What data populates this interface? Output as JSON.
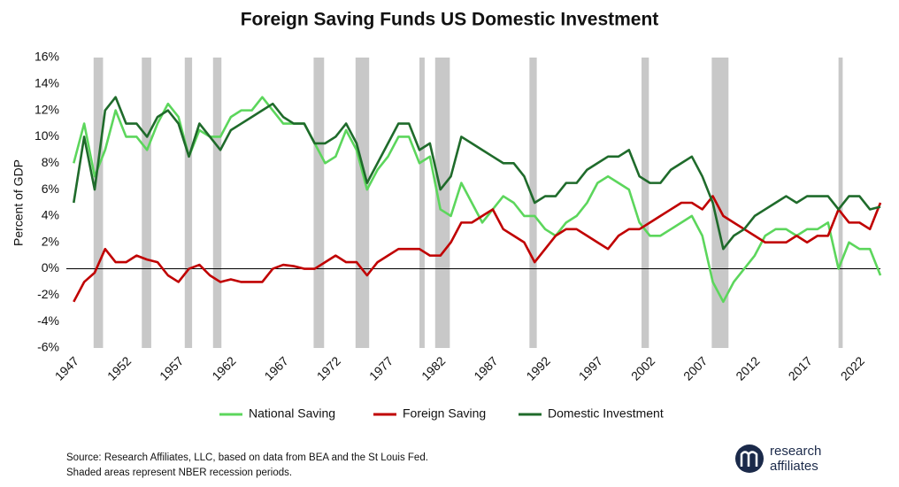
{
  "chart_data": {
    "type": "line",
    "title": "Foreign Saving Funds US Domestic Investment",
    "y_label": "Percent of GDP",
    "x": [
      1947,
      1948,
      1949,
      1950,
      1951,
      1952,
      1953,
      1954,
      1955,
      1956,
      1957,
      1958,
      1959,
      1960,
      1961,
      1962,
      1963,
      1964,
      1965,
      1966,
      1967,
      1968,
      1969,
      1970,
      1971,
      1972,
      1973,
      1974,
      1975,
      1976,
      1977,
      1978,
      1979,
      1980,
      1981,
      1982,
      1983,
      1984,
      1985,
      1986,
      1987,
      1988,
      1989,
      1990,
      1991,
      1992,
      1993,
      1994,
      1995,
      1996,
      1997,
      1998,
      1999,
      2000,
      2001,
      2002,
      2003,
      2004,
      2005,
      2006,
      2007,
      2008,
      2009,
      2010,
      2011,
      2012,
      2013,
      2014,
      2015,
      2016,
      2017,
      2018,
      2019,
      2020,
      2021,
      2022,
      2023,
      2024
    ],
    "series": [
      {
        "name": "National Saving",
        "color": "#5cd65c",
        "values": [
          8,
          11,
          7,
          9,
          12,
          10,
          10,
          9,
          11,
          12.5,
          11.5,
          8.5,
          10.5,
          10,
          10,
          11.5,
          12,
          12,
          13,
          12,
          11,
          11,
          11,
          9.5,
          8,
          8.5,
          10.5,
          9,
          6,
          7.5,
          8.5,
          10,
          10,
          8,
          8.5,
          4.5,
          4,
          6.5,
          5,
          3.5,
          4.5,
          5.5,
          5,
          4,
          4,
          3,
          2.5,
          3.5,
          4,
          5,
          6.5,
          7,
          6.5,
          6,
          3.5,
          2.5,
          2.5,
          3,
          3.5,
          4,
          2.5,
          -1,
          -2.5,
          -1,
          0,
          1,
          2.5,
          3,
          3,
          2.5,
          3,
          3,
          3.5,
          0,
          2,
          1.5,
          1.5,
          -0.5
        ]
      },
      {
        "name": "Foreign Saving",
        "color": "#c00000",
        "values": [
          -2.5,
          -1,
          -0.3,
          1.5,
          0.5,
          0.5,
          1,
          0.7,
          0.5,
          -0.5,
          -1,
          0,
          0.3,
          -0.5,
          -1,
          -0.8,
          -1,
          -1,
          -1,
          0,
          0.3,
          0.2,
          0,
          0,
          0.5,
          1,
          0.5,
          0.5,
          -0.5,
          0.5,
          1,
          1.5,
          1.5,
          1.5,
          1,
          1,
          2,
          3.5,
          3.5,
          4,
          4.5,
          3,
          2.5,
          2,
          0.5,
          1.5,
          2.5,
          3,
          3,
          2.5,
          2,
          1.5,
          2.5,
          3,
          3,
          3.5,
          4,
          4.5,
          5,
          5,
          4.5,
          5.5,
          4,
          3.5,
          3,
          2.5,
          2,
          2,
          2,
          2.5,
          2,
          2.5,
          2.5,
          4.5,
          3.5,
          3.5,
          3,
          5
        ]
      },
      {
        "name": "Domestic Investment",
        "color": "#1f6b2b",
        "values": [
          5,
          10,
          6,
          12,
          13,
          11,
          11,
          10,
          11.5,
          12,
          11,
          8.5,
          11,
          10,
          9,
          10.5,
          11,
          11.5,
          12,
          12.5,
          11.5,
          11,
          11,
          9.5,
          9.5,
          10,
          11,
          9.5,
          6.5,
          8,
          9.5,
          11,
          11,
          9,
          9.5,
          6,
          7,
          10,
          9.5,
          9,
          8.5,
          8,
          8,
          7,
          5,
          5.5,
          5.5,
          6.5,
          6.5,
          7.5,
          8,
          8.5,
          8.5,
          9,
          7,
          6.5,
          6.5,
          7.5,
          8,
          8.5,
          7,
          5,
          1.5,
          2.5,
          3,
          4,
          4.5,
          5,
          5.5,
          5,
          5.5,
          5.5,
          5.5,
          4.5,
          5.5,
          5.5,
          4.5,
          4.7
        ]
      }
    ],
    "recessions": [
      [
        1948.9,
        1949.8
      ],
      [
        1953.5,
        1954.4
      ],
      [
        1957.6,
        1958.3
      ],
      [
        1960.3,
        1961.1
      ],
      [
        1969.9,
        1970.9
      ],
      [
        1973.9,
        1975.2
      ],
      [
        1980.0,
        1980.5
      ],
      [
        1981.5,
        1982.9
      ],
      [
        1990.5,
        1991.2
      ],
      [
        2001.2,
        2001.9
      ],
      [
        2007.9,
        2009.5
      ],
      [
        2020.0,
        2020.4
      ]
    ],
    "recession_color": "#c8c8c8",
    "xlim": [
      1946.3,
      2024
    ],
    "xticks": [
      1947,
      1952,
      1957,
      1962,
      1967,
      1972,
      1977,
      1982,
      1987,
      1992,
      1997,
      2002,
      2007,
      2012,
      2017,
      2022
    ],
    "ylim": [
      -6,
      16
    ],
    "yticks": [
      {
        "value": -6,
        "label": "-6%"
      },
      {
        "value": -4,
        "label": "-4%"
      },
      {
        "value": -2,
        "label": "-2%"
      },
      {
        "value": 0,
        "label": "0%"
      },
      {
        "value": 2,
        "label": "2%"
      },
      {
        "value": 4,
        "label": "4%"
      },
      {
        "value": 6,
        "label": "6%"
      },
      {
        "value": 8,
        "label": "8%"
      },
      {
        "value": 10,
        "label": "10%"
      },
      {
        "value": 12,
        "label": "12%"
      },
      {
        "value": 14,
        "label": "14%"
      },
      {
        "value": 16,
        "label": "16%"
      }
    ],
    "source": "Source: Research Affiliates, LLC, based on data from BEA and the St Louis Fed.",
    "note": "Shaded areas represent NBER recession periods.",
    "logo_line1": "research",
    "logo_line2": "affiliates"
  }
}
